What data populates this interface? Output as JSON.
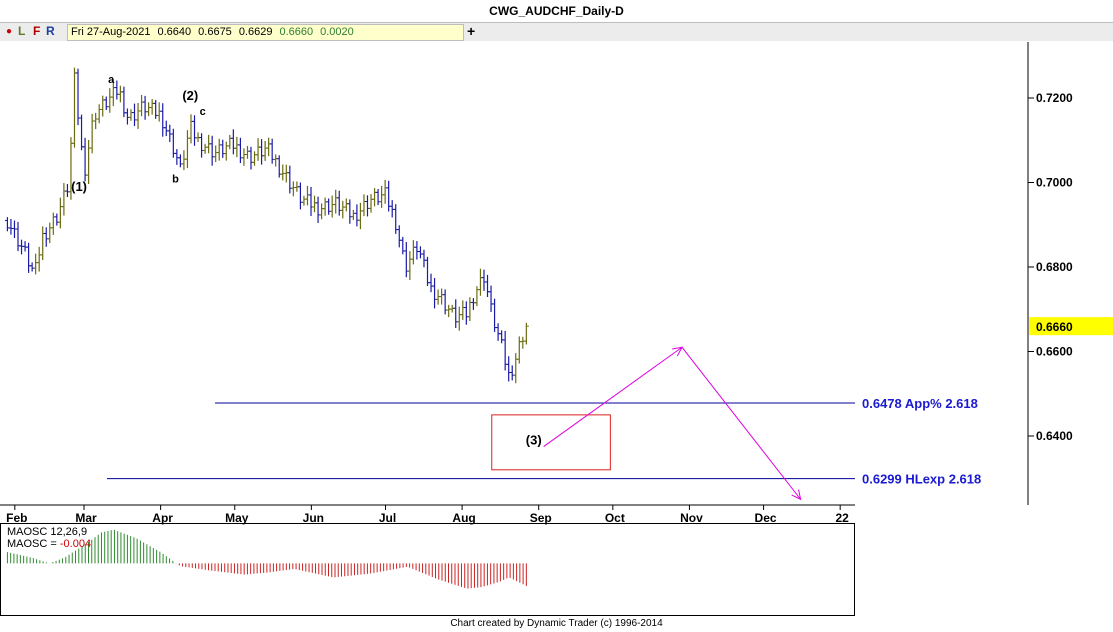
{
  "window": {
    "title": "CWG_AUDCHF_Daily-D"
  },
  "toolbar": {
    "indicator_dot": "●",
    "btn_l": "L",
    "btn_f": "F",
    "btn_r": "R",
    "ohlc": {
      "date": "Fri 27-Aug-2021",
      "open": "0.6640",
      "high": "0.6675",
      "low": "0.6629",
      "close": "0.6660",
      "change": "0.0020"
    },
    "add_label": "+"
  },
  "footer": {
    "credit": "Chart created by Dynamic Trader  (c) 1996-2014"
  },
  "chart_data": {
    "type": "ohlc-bar",
    "y_ticks": [
      "0.7200",
      "0.7000",
      "0.6800",
      "0.6600",
      "0.6400"
    ],
    "price_ylim": [
      0.6225,
      0.732
    ],
    "x_months": [
      "Feb",
      "Mar",
      "Apr",
      "May",
      "Jun",
      "Jul",
      "Aug",
      "Sep",
      "Oct",
      "Nov",
      "Dec",
      "22"
    ],
    "last_price": "0.6660",
    "colors": {
      "up": "#6b6b10",
      "down": "#1a1aa8",
      "projection": "#dd00dd",
      "box": "#dd2222",
      "level": "#000099",
      "highlight": "#ffff00",
      "osc_up": "#2e8b2e",
      "osc_down": "#cc2222"
    },
    "wave_labels": [
      "(1)",
      "a",
      "b",
      "c",
      "(2)",
      "(3)"
    ],
    "levels": [
      {
        "price": 0.6478,
        "label": "0.6478 App% 2.618"
      },
      {
        "price": 0.6299,
        "label": "0.6299 HLexp 2.618"
      }
    ],
    "price_points": [
      [
        "2021-01-29",
        0.691
      ],
      [
        "2021-02-05",
        0.6835
      ],
      [
        "2021-02-09",
        0.678
      ],
      [
        "2021-02-12",
        0.687
      ],
      [
        "2021-02-18",
        0.692
      ],
      [
        "2021-02-23",
        0.7
      ],
      [
        "2021-02-25",
        0.725
      ],
      [
        "2021-03-01",
        0.702
      ],
      [
        "2021-03-05",
        0.716
      ],
      [
        "2021-03-10",
        0.719
      ],
      [
        "2021-03-15",
        0.722
      ],
      [
        "2021-03-19",
        0.715
      ],
      [
        "2021-03-25",
        0.718
      ],
      [
        "2021-04-01",
        0.716
      ],
      [
        "2021-04-07",
        0.707
      ],
      [
        "2021-04-09",
        0.703
      ],
      [
        "2021-04-13",
        0.713
      ],
      [
        "2021-04-16",
        0.71
      ],
      [
        "2021-04-23",
        0.707
      ],
      [
        "2021-04-30",
        0.709
      ],
      [
        "2021-05-07",
        0.706
      ],
      [
        "2021-05-14",
        0.708
      ],
      [
        "2021-05-21",
        0.702
      ],
      [
        "2021-05-28",
        0.696
      ],
      [
        "2021-06-04",
        0.694
      ],
      [
        "2021-06-11",
        0.695
      ],
      [
        "2021-06-18",
        0.692
      ],
      [
        "2021-06-25",
        0.696
      ],
      [
        "2021-07-01",
        0.697
      ],
      [
        "2021-07-05",
        0.691
      ],
      [
        "2021-07-09",
        0.68
      ],
      [
        "2021-07-14",
        0.685
      ],
      [
        "2021-07-19",
        0.675
      ],
      [
        "2021-07-23",
        0.673
      ],
      [
        "2021-07-29",
        0.668
      ],
      [
        "2021-08-03",
        0.669
      ],
      [
        "2021-08-06",
        0.674
      ],
      [
        "2021-08-10",
        0.678
      ],
      [
        "2021-08-13",
        0.669
      ],
      [
        "2021-08-17",
        0.661
      ],
      [
        "2021-08-20",
        0.654
      ],
      [
        "2021-08-23",
        0.659
      ],
      [
        "2021-08-25",
        0.663
      ],
      [
        "2021-08-27",
        0.666
      ]
    ],
    "projection_path": [
      [
        "2021-09-03",
        0.6375
      ],
      [
        "2021-10-29",
        0.661
      ],
      [
        "2021-12-16",
        0.625
      ]
    ],
    "target_box": {
      "x0": "2021-08-13",
      "x1": "2021-09-30",
      "y0": 0.645,
      "y1": 0.632
    },
    "oscillator": {
      "label": "MAOSC 12,26,9",
      "value_prefix": "MAOSC = ",
      "value": "-0.004",
      "ylim": [
        -0.009,
        0.007
      ],
      "points": [
        [
          "2021-01-29",
          0.002
        ],
        [
          "2021-02-08",
          0.001
        ],
        [
          "2021-02-15",
          0.0
        ],
        [
          "2021-02-21",
          0.001
        ],
        [
          "2021-03-02",
          0.0035
        ],
        [
          "2021-03-08",
          0.0055
        ],
        [
          "2021-03-13",
          0.006
        ],
        [
          "2021-03-22",
          0.0045
        ],
        [
          "2021-04-01",
          0.002
        ],
        [
          "2021-04-09",
          -0.0005
        ],
        [
          "2021-04-20",
          -0.0012
        ],
        [
          "2021-05-05",
          -0.002
        ],
        [
          "2021-05-15",
          -0.0016
        ],
        [
          "2021-05-25",
          -0.001
        ],
        [
          "2021-06-10",
          -0.0025
        ],
        [
          "2021-06-25",
          -0.0018
        ],
        [
          "2021-07-10",
          -0.0006
        ],
        [
          "2021-07-22",
          -0.0028
        ],
        [
          "2021-08-03",
          -0.0045
        ],
        [
          "2021-08-09",
          -0.0042
        ],
        [
          "2021-08-16",
          -0.0033
        ],
        [
          "2021-08-20",
          -0.0025
        ],
        [
          "2021-08-27",
          -0.004
        ]
      ]
    }
  }
}
